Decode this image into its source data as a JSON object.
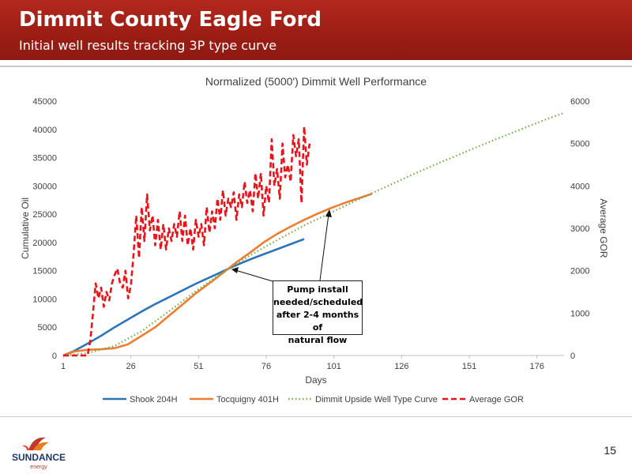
{
  "header": {
    "title": "Dimmit County Eagle Ford",
    "subtitle": "Initial well results tracking 3P type curve"
  },
  "callout": {
    "lines": [
      "Pump install",
      "needed/scheduled",
      "after 2-4 months of",
      "natural flow"
    ]
  },
  "logo": {
    "name": "SUNDANCE",
    "tagline": "energy"
  },
  "page_number": "15",
  "chart_data": {
    "type": "line",
    "title": "Normalized (5000') Dimmit Well Performance",
    "xlabel": "Days",
    "ylabel": "Cumulative Oil",
    "y2label": "Average GOR",
    "xlim": [
      1,
      186
    ],
    "ylim": [
      0,
      45000
    ],
    "y2lim": [
      0,
      6000
    ],
    "xticks": [
      "1",
      "26",
      "51",
      "76",
      "101",
      "126",
      "151",
      "176"
    ],
    "yticks": [
      "0",
      "5000",
      "10000",
      "15000",
      "20000",
      "25000",
      "30000",
      "35000",
      "40000",
      "45000"
    ],
    "y2ticks": [
      "0",
      "1000",
      "2000",
      "3000",
      "4000",
      "5000",
      "6000"
    ],
    "grid": false,
    "legend_position": "bottom",
    "series": [
      {
        "name": "Shook 204H",
        "axis": "left",
        "color": "#2e75b6",
        "style": "solid",
        "x": [
          1,
          5,
          10,
          15,
          20,
          25,
          30,
          35,
          40,
          45,
          50,
          55,
          60,
          65,
          70,
          75,
          80,
          85,
          90
        ],
        "y": [
          0,
          800,
          2100,
          3500,
          5000,
          6400,
          7800,
          9100,
          10300,
          11500,
          12700,
          13800,
          14900,
          16000,
          17000,
          17900,
          18800,
          19700,
          20600
        ]
      },
      {
        "name": "Tocquigny 401H",
        "axis": "left",
        "color": "#ed7d31",
        "style": "solid",
        "x": [
          1,
          5,
          10,
          15,
          20,
          25,
          30,
          35,
          40,
          45,
          50,
          55,
          60,
          65,
          70,
          75,
          80,
          85,
          90,
          95,
          100,
          105,
          110,
          115
        ],
        "y": [
          0,
          700,
          1000,
          1100,
          1300,
          2000,
          3500,
          5000,
          7000,
          9000,
          11000,
          12800,
          14600,
          16500,
          18200,
          20000,
          21500,
          22800,
          24000,
          25100,
          26100,
          27000,
          27800,
          28600
        ]
      },
      {
        "name": "Dimmit Upside Well Type Curve",
        "axis": "left",
        "color": "#70ad47",
        "style": "dotted",
        "x": [
          1,
          10,
          20,
          30,
          40,
          50,
          60,
          70,
          80,
          90,
          100,
          110,
          120,
          130,
          140,
          150,
          160,
          170,
          180,
          186
        ],
        "y": [
          0,
          400,
          1700,
          4300,
          7800,
          11400,
          14700,
          17700,
          20400,
          23000,
          25300,
          27600,
          29800,
          32000,
          34100,
          36100,
          38100,
          40000,
          41900,
          42900
        ]
      },
      {
        "name": "Average GOR",
        "axis": "right",
        "color": "#e8141b",
        "style": "dashed",
        "x": [
          1,
          5,
          10,
          11,
          12,
          13,
          14,
          15,
          16,
          17,
          18,
          19,
          20,
          21,
          22,
          23,
          24,
          25,
          26,
          27,
          28,
          29,
          30,
          31,
          32,
          33,
          34,
          35,
          36,
          37,
          38,
          39,
          40,
          41,
          42,
          43,
          44,
          45,
          46,
          47,
          48,
          49,
          50,
          51,
          52,
          53,
          54,
          55,
          56,
          57,
          58,
          59,
          60,
          61,
          62,
          63,
          64,
          65,
          66,
          67,
          68,
          69,
          70,
          71,
          72,
          73,
          74,
          75,
          76,
          77,
          78,
          79,
          80,
          81,
          82,
          83,
          84,
          85,
          86,
          87,
          88,
          89,
          90,
          91,
          92
        ],
        "y": [
          0,
          0,
          0,
          350,
          1000,
          1700,
          1350,
          1600,
          1150,
          1500,
          1300,
          1700,
          1900,
          2050,
          1700,
          1600,
          2000,
          1350,
          1650,
          2400,
          3300,
          2300,
          3500,
          2700,
          3800,
          2950,
          3300,
          2600,
          3200,
          2500,
          3100,
          2500,
          3000,
          2700,
          3100,
          2800,
          3400,
          2700,
          3300,
          2600,
          3000,
          2500,
          3200,
          2800,
          3100,
          2600,
          3500,
          2900,
          3400,
          3000,
          3700,
          3200,
          3900,
          3300,
          3700,
          3500,
          3850,
          3200,
          3800,
          3500,
          4100,
          3600,
          3900,
          3400,
          4300,
          3700,
          4300,
          3300,
          4000,
          3600,
          5100,
          4000,
          4400,
          3700,
          5000,
          4200,
          4500,
          4100,
          5200,
          4700,
          5100,
          3600,
          5400,
          4500,
          5000
        ]
      }
    ]
  }
}
